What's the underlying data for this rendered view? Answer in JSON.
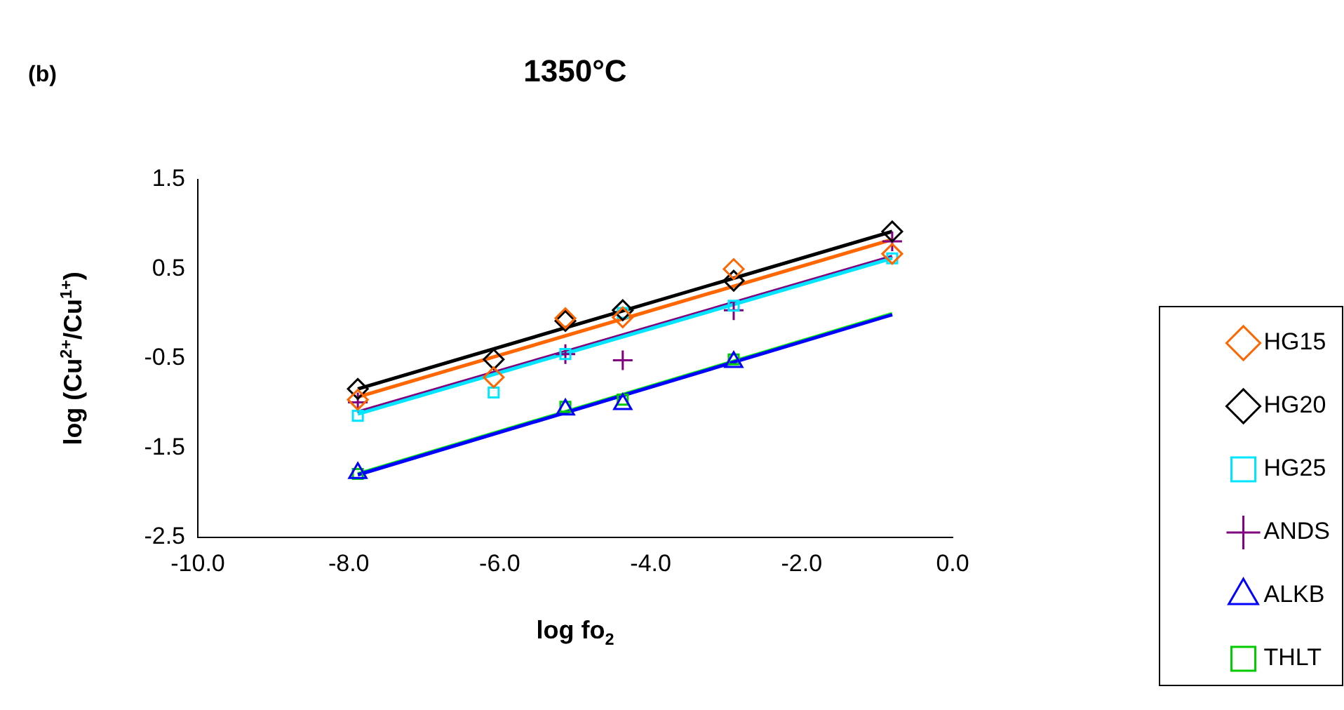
{
  "chart_data": {
    "type": "scatter",
    "title": "1350°C",
    "xlabel": "log fo$_{2}$",
    "ylabel": "log (Cu$^{2+}$/Cu$^{1+}$)",
    "annotations": [
      "(b)"
    ],
    "x": [
      -7.88,
      -6.08,
      -5.13,
      -4.37,
      -2.9,
      -0.8
    ],
    "series": [
      {
        "name": "HG15",
        "color": "#ff6600",
        "marker": "diamond",
        "values": [
          -0.96,
          -0.71,
          -0.05,
          -0.04,
          0.5,
          0.67
        ]
      },
      {
        "name": "HG20",
        "color": "#000000",
        "marker": "diamond",
        "values": [
          -0.84,
          -0.51,
          -0.08,
          0.04,
          0.37,
          0.92
        ]
      },
      {
        "name": "HG25",
        "color": "#00e5ff",
        "marker": "square",
        "values": [
          -1.14,
          -0.88,
          -0.45,
          0.01,
          0.09,
          0.62
        ]
      },
      {
        "name": "ANDS",
        "color": "#800080",
        "marker": "cross",
        "values": [
          -0.99,
          null,
          -0.45,
          -0.52,
          0.04,
          0.81
        ]
      },
      {
        "name": "ALKB",
        "color": "#0000ff",
        "marker": "triangle",
        "values": [
          -1.78,
          null,
          -1.07,
          -1.01,
          -0.54,
          null
        ]
      },
      {
        "name": "THLT",
        "color": "#00cc00",
        "marker": "square",
        "values": [
          -1.79,
          null,
          -1.04,
          -0.96,
          -0.51,
          null
        ]
      },
      {
        "type": "line",
        "color": "#00e5ff",
        "marker": "none",
        "values": [
          -1.12,
          null,
          null,
          null,
          null,
          0.62
        ]
      },
      {
        "type": "line",
        "color": "#0000ff",
        "marker": "none",
        "values": [
          -1.8,
          null,
          null,
          null,
          null,
          -0.01
        ]
      },
      {
        "type": "line",
        "color": "#ff6600",
        "marker": "none",
        "values": [
          -0.93,
          null,
          null,
          null,
          null,
          0.83
        ]
      },
      {
        "type": "line",
        "color": "#800080",
        "marker": "none",
        "values": [
          -1.1,
          null,
          null,
          null,
          null,
          0.64
        ]
      },
      {
        "type": "line",
        "color": "#000000",
        "marker": "none",
        "values": [
          -0.84,
          null,
          null,
          null,
          null,
          0.92
        ]
      },
      {
        "type": "line",
        "color": "#00ff00",
        "marker": "none",
        "values": [
          -1.79,
          null,
          null,
          null,
          null,
          0.0
        ]
      }
    ],
    "xlim": [
      -10,
      0
    ],
    "xticks": [
      {
        "value": -10,
        "label": "-10.0"
      },
      {
        "value": -8,
        "label": "-8.0"
      },
      {
        "value": -6,
        "label": "-6.0"
      },
      {
        "value": -4,
        "label": "-4.0"
      },
      {
        "value": -2,
        "label": "-2.0"
      },
      {
        "value": 0,
        "label": "0.0"
      }
    ],
    "ylim": [
      -2.5,
      1.5
    ],
    "yticks": [
      -2.5,
      -1.5,
      -0.5,
      0.5,
      1.5
    ],
    "grid": false,
    "legend": "right"
  }
}
